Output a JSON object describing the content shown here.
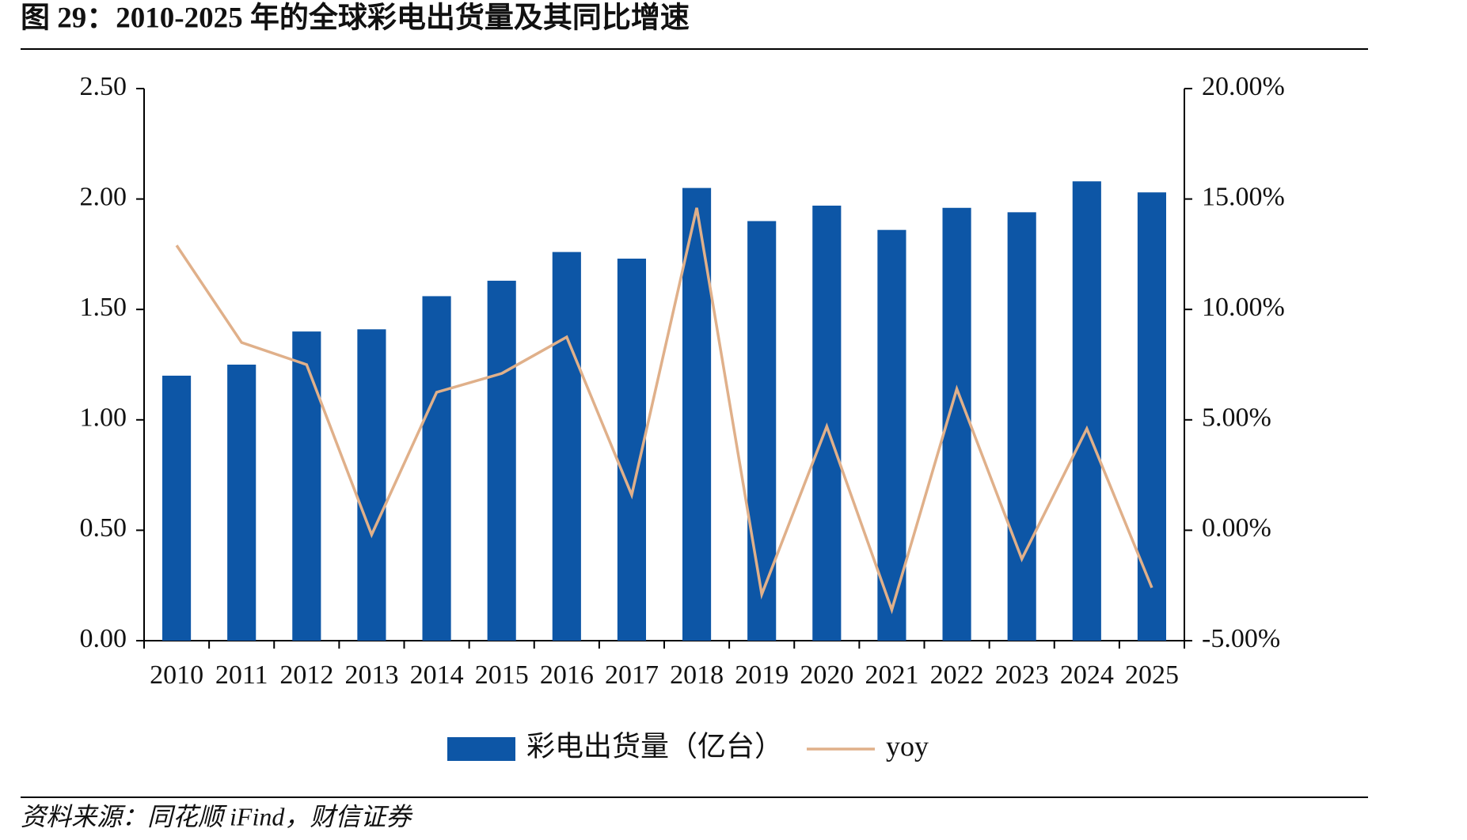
{
  "chart_data": {
    "type": "bar_line",
    "title": "图 29：2010-2025 年的全球彩电出货量及其同比增速",
    "categories": [
      "2010",
      "2011",
      "2012",
      "2013",
      "2014",
      "2015",
      "2016",
      "2017",
      "2018",
      "2019",
      "2020",
      "2021",
      "2022",
      "2023",
      "2024",
      "2025"
    ],
    "series": [
      {
        "name": "彩电出货量（亿台）",
        "type": "bar",
        "color": "#0d56a6",
        "axis": "y",
        "values": [
          1.2,
          1.25,
          1.4,
          1.41,
          1.56,
          1.63,
          1.76,
          1.73,
          2.05,
          1.9,
          1.97,
          1.86,
          1.96,
          1.94,
          2.08,
          2.03
        ]
      },
      {
        "name": "yoy",
        "type": "line",
        "color": "#e0b08a",
        "axis": "y2",
        "values": [
          12.9,
          8.5,
          7.5,
          -0.2,
          6.25,
          7.1,
          8.75,
          1.6,
          14.6,
          -2.9,
          4.7,
          -3.6,
          6.4,
          -1.3,
          4.6,
          -2.6
        ]
      }
    ],
    "ylim": [
      0,
      2.5
    ],
    "yticks": [
      {
        "value": 0,
        "label": "0.00"
      },
      {
        "value": 0.5,
        "label": "0.50"
      },
      {
        "value": 1,
        "label": "1.00"
      },
      {
        "value": 1.5,
        "label": "1.50"
      },
      {
        "value": 2,
        "label": "2.00"
      },
      {
        "value": 2.5,
        "label": "2.50"
      }
    ],
    "y2lim": [
      -5,
      20
    ],
    "y2ticks": [
      {
        "value": -5,
        "label": "-5.00%"
      },
      {
        "value": 0,
        "label": "0.00%"
      },
      {
        "value": 5,
        "label": "5.00%"
      },
      {
        "value": 10,
        "label": "10.00%"
      },
      {
        "value": 15,
        "label": "15.00%"
      },
      {
        "value": 20,
        "label": "20.00%"
      }
    ],
    "grid": false,
    "legend": "bottom",
    "source": "资料来源：同花顺 iFind，财信证券"
  }
}
